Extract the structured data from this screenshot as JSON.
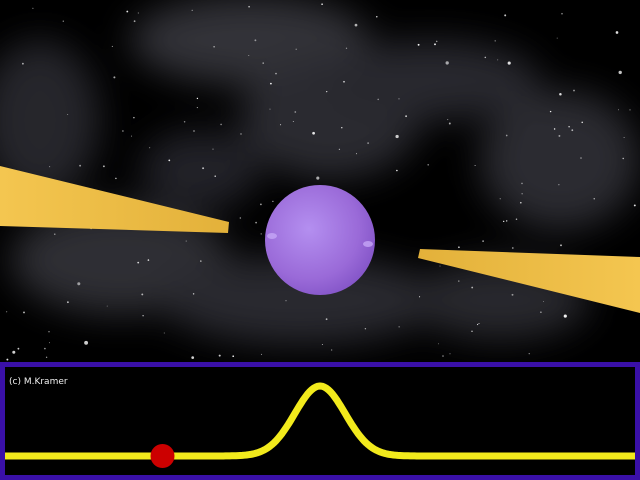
{
  "credit": "(c) M.Kramer",
  "colors": {
    "background": "#000000",
    "nebula": "#6e6e7a",
    "star": "#ffffff",
    "neutron_star": "#9a6ad8",
    "neutron_star_highlight": "#b48ff0",
    "beam": "#f0c24a",
    "panel_border": "#3a10a8",
    "pulse_trace": "#f2ea1c",
    "phase_marker": "#cc0000"
  },
  "pulse_profile": {
    "description_icon": "pulse-trace-icon",
    "pulse_phase_center": 0.5,
    "marker_phase": 0.25
  }
}
